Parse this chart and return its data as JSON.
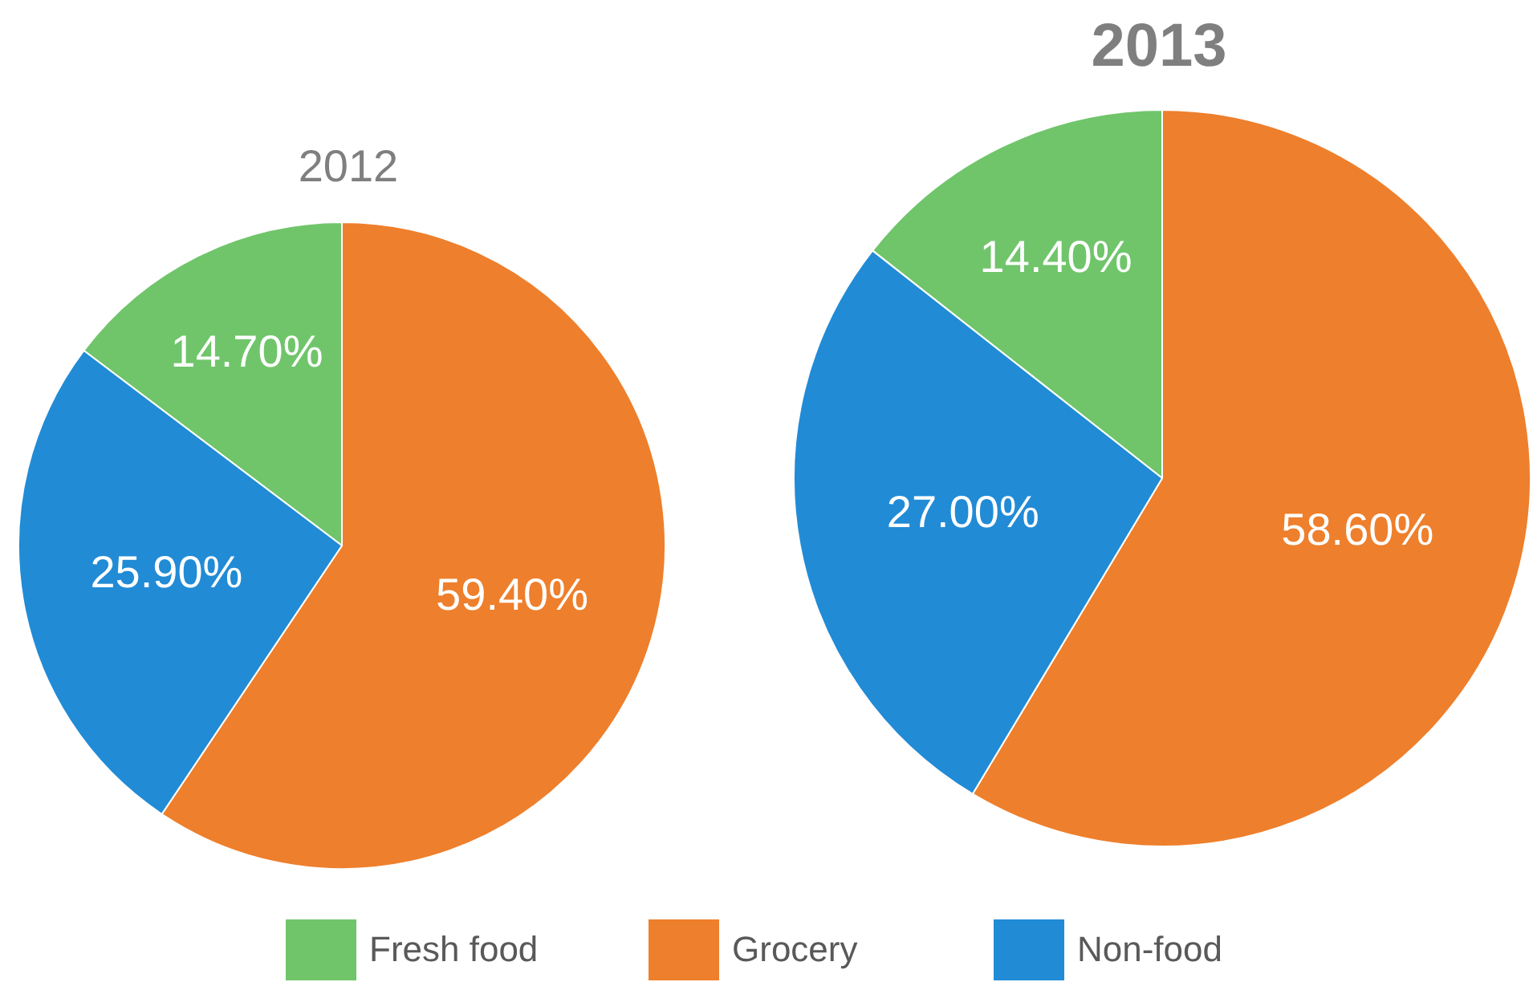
{
  "chart_data": [
    {
      "type": "pie",
      "title": "2012",
      "categories": [
        "Fresh food",
        "Grocery",
        "Non-food"
      ],
      "values": [
        14.7,
        59.4,
        25.9
      ],
      "value_labels": [
        "14.70%",
        "59.40%",
        "25.90%"
      ],
      "colors": [
        "#70c56b",
        "#ee7f2c",
        "#218bd6"
      ],
      "legend": "bottom"
    },
    {
      "type": "pie",
      "title": "2013",
      "categories": [
        null,
        null,
        null
      ],
      "values": [
        14.4,
        58.6,
        27.0
      ],
      "value_labels": [
        "14.40%",
        "58.60%",
        "27.00%"
      ],
      "colors": [
        "#70c56b",
        "#ee7f2c",
        "#218bd6"
      ]
    }
  ]
}
